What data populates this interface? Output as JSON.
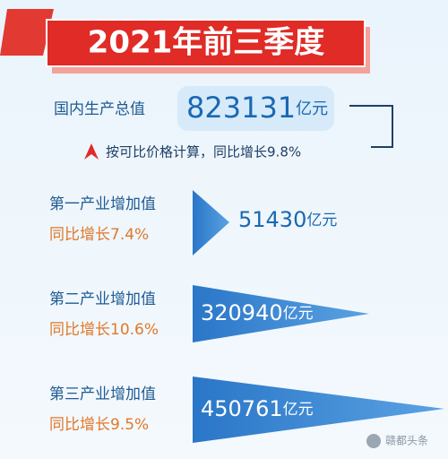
{
  "title": "2021年前三季度",
  "gdp": {
    "label": "国内生产总值",
    "value": "823131",
    "unit": "亿元",
    "note": "按可比价格计算，同比增长9.8%"
  },
  "industries": [
    {
      "label": "第一产业增加值",
      "growth": "同比增长7.4%",
      "value": "51430",
      "unit": "亿元"
    },
    {
      "label": "第二产业增加值",
      "growth": "同比增长10.6%",
      "value": "320940",
      "unit": "亿元"
    },
    {
      "label": "第三产业增加值",
      "growth": "同比增长9.5%",
      "value": "450761",
      "unit": "亿元"
    }
  ],
  "watermark": "赣都头条"
}
